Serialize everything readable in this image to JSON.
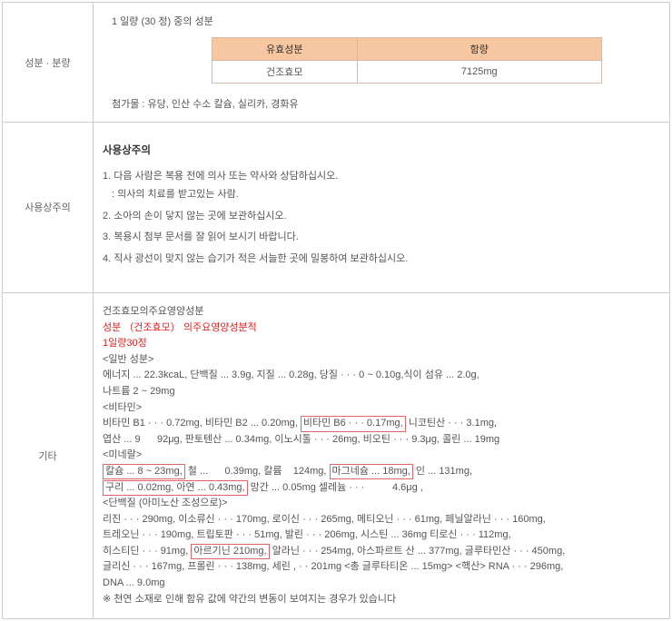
{
  "row1": {
    "label": "성분 · 분량",
    "subtitle": "1 일량 (30 정) 중의 성분",
    "table": {
      "h1": "유효성분",
      "h2": "함량",
      "c1": "건조효모",
      "c2": "7125mg",
      "col1_width": 160,
      "col2_width": 270
    },
    "additives": "첨가물 : 유당, 인산 수소 칼슘, 실리카, 경화유"
  },
  "row2": {
    "label": "사용상주의",
    "title": "사용상주의",
    "items": {
      "i1": "1. 다음 사람은 복용 전에 의사 또는 약사와 상담하십시오.",
      "i1s": ": 의사의 치료를 받고있는 사람.",
      "i2": "2. 소아의 손이 닿지 않는 곳에 보관하십시오.",
      "i3": "3. 복용시 첨부 문서를 잘 읽어 보시기 바랍니다.",
      "i4": "4. 직사 광선이 맞지 않는 습기가 적은 서늘한 곳에 밀봉하여 보관하십시오."
    }
  },
  "row3": {
    "label": "기타",
    "l1": "건조효모의주요영양성분",
    "l2": "성분 （건조효모） 의주요영양성분적",
    "l3": "1일량30정",
    "l4": "<일반 성분>",
    "l5a": "에너지 ... 22.3kcaL, 단백질 ... 3.9g, 지질 ... 0.28g, 당질 · · · 0 ~ 0.10g,식이 섬유 ... 2.0g,",
    "l5b": "나트륨 2 ~ 29mg",
    "l6": "<비타민>",
    "l7a_pre": "비타민 B1 · · · 0.72mg, 비타민 B2 ... 0.20mg, ",
    "l7a_box": "비타민 B6 · · · 0.17mg,",
    "l7a_post": " 니코틴산 · · · 3.1mg,",
    "l7b": "엽산 ... 9      92μg, 판토텐산 ... 0.34mg, 이노시톨 · · · 26mg, 비오틴 · · · 9.3μg, 콜린 ... 19mg",
    "l8": "<미네랄>",
    "l9a_box1": "칼슘 ... 8 ~ 23mg,",
    "l9a_mid": " 철 ...      0.39mg, 칼륨    124mg, ",
    "l9a_box2": "마그네슘 ... 18mg,",
    "l9a_post": " 인 ... 131mg,",
    "l9b_box": "구리 ... 0.02mg, 아연 ... 0.43mg,",
    "l9b_post": " 망간 ... 0.05mg 셀레늄 · · ·          4.6μg ,",
    "l10": "<단백질 (아미노산 조성으로)>",
    "l11a": "리진 · · · 290mg, 이소류신 · · · 170mg, 로이신 · · · 265mg, 메티오닌 · · · 61mg, 페닐알라닌 · · · 160mg,",
    "l11b": "트레오닌 · · · 190mg, 트립토판 · · · 51mg, 발린 · · · 206mg, 시스틴 ... 36mg 티로신 · · · 112mg,",
    "l11c_pre": "히스티딘 · · · 91mg, ",
    "l11c_box": "아르기닌 210mg,",
    "l11c_post": " 알라닌 · · · 254mg, 아스파르트 산 ... 377mg, 글루타민산 · · · 450mg,",
    "l11d": "글리신 · · · 167mg, 프롤린 · · · 138mg, 세린 , · · 201mg <총 글루타티온 ... 15mg> <핵산> RNA · · · 296mg,",
    "l11e": "DNA ... 9.0mg",
    "note": "※ 천연 소재로 인해 함유 값에 약간의 변동이 보여지는 경우가 있습니다"
  },
  "colors": {
    "border": "#cccccc",
    "th_bg": "#f7c7a1",
    "th_border": "#d8b9a8",
    "text": "#555555",
    "red": "#dd2222",
    "box_border": "#dd6666"
  }
}
